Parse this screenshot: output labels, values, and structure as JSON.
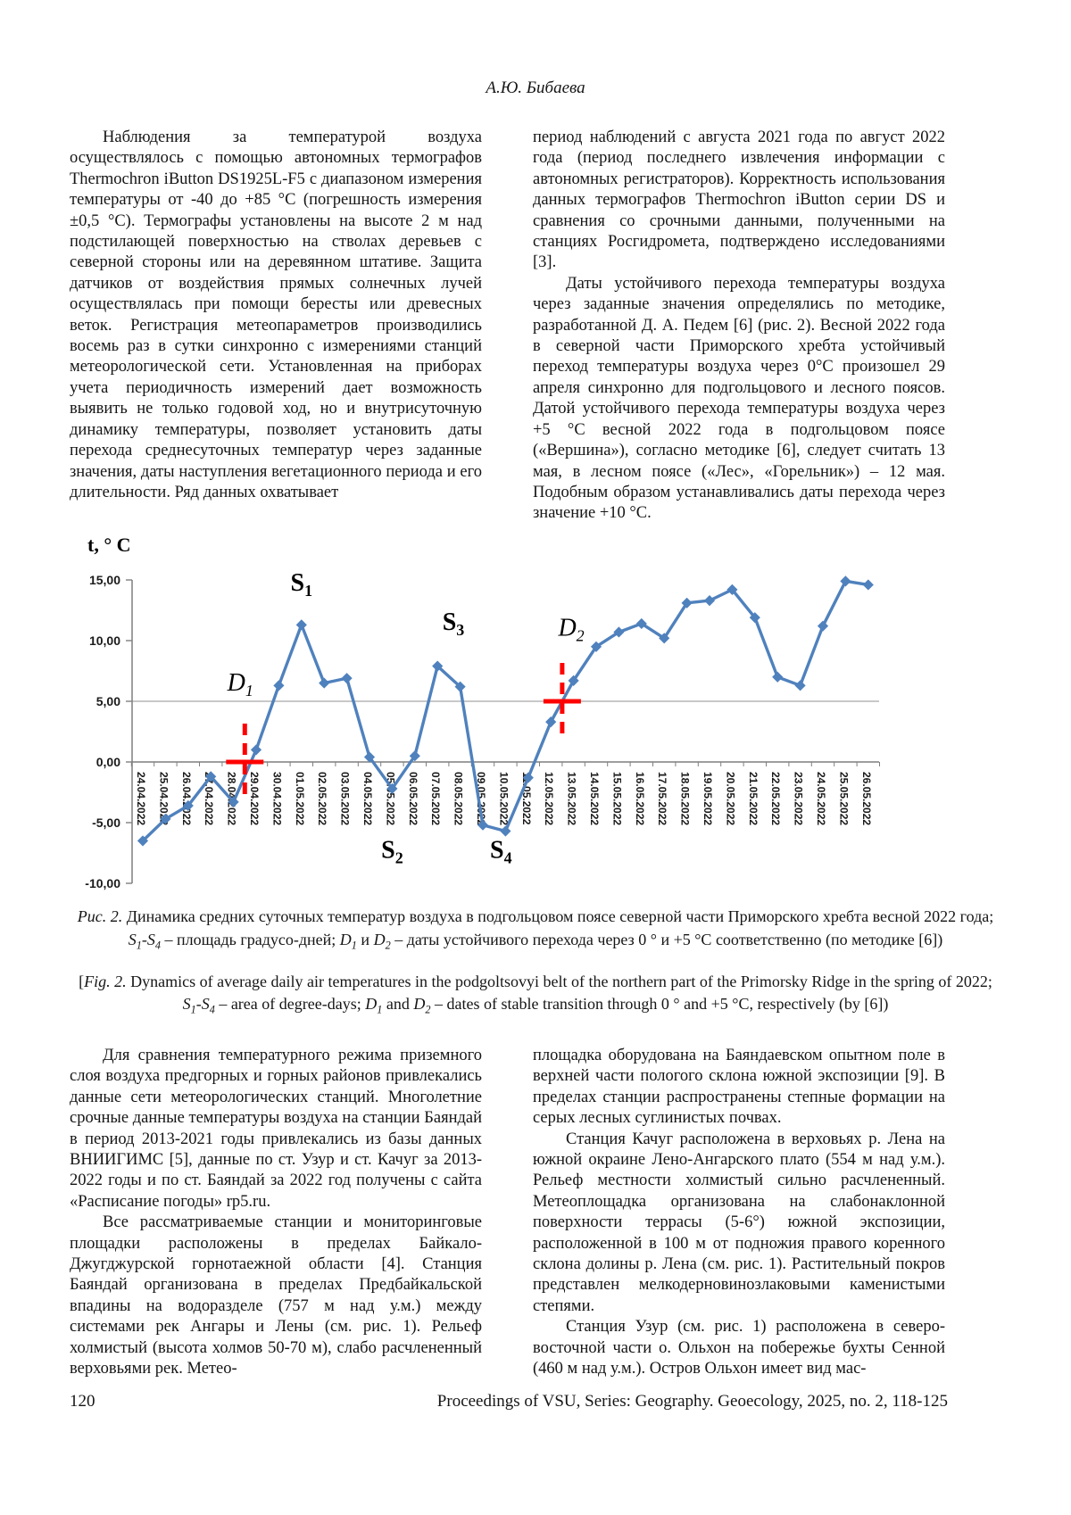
{
  "page": {
    "header_author": "А.Ю. Бибаева",
    "footer_page_number": "120",
    "footer_journal": "Proceedings of VSU, Series: Geography. Geoecology, 2025, no. 2, 118-125"
  },
  "body_top_left": [
    "Наблюдения за температурой воздуха осуществлялось с помощью автономных термографов Thermochron iButton DS1925L-F5 с диапазоном измерения температуры от -40 до +85 °C (погрешность измерения ±0,5 °C). Термографы установлены на высоте 2 м над подстилающей поверхностью на стволах деревьев с северной стороны или на деревянном штативе. Защита датчиков от воздействия прямых солнечных лучей осуществлялась при помощи бересты или древесных веток. Регистрация метеопараметров производились восемь раз в сутки синхронно с измерениями станций метеорологической сети. Установленная на приборах учета периодичность измерений дает возможность выявить не только годовой ход, но и внутрисуточную динамику температуры, позволяет установить даты перехода среднесуточных температур через заданные значения, даты наступления вегетационного периода и его длительности. Ряд данных охватывает"
  ],
  "body_top_right": [
    "период наблюдений с августа 2021 года по август 2022 года (период последнего извлечения информации с автономных регистраторов). Корректность использования данных термографов Thermochron iButton серии DS и сравнения со срочными данными, полученными на станциях Росгидромета, подтверждено исследованиями [3].",
    "Даты устойчивого перехода температуры воздуха через заданные значения определялись по методике, разработанной Д. А. Педем [6] (рис. 2). Весной 2022 года в северной части Приморского хребта устойчивый переход температуры воздуха через 0°C произошел 29 апреля синхронно для подгольцового и лесного поясов. Датой устойчивого перехода температуры воздуха через +5 °C весной 2022 года в подгольцовом поясе («Вершина»), согласно методике [6], следует считать 13 мая, в лесном поясе («Лес», «Горельник») – 12 мая. Подобным образом устанавливались даты перехода через значение +10 °C."
  ],
  "body_bottom_left": [
    "Для сравнения температурного режима приземного слоя воздуха предгорных и горных районов привлекались данные сети метеорологических станций. Многолетние срочные данные температуры воздуха на станции Баяндай в период 2013-2021 годы привлекались из базы данных ВНИИГИМС [5], данные по ст. Узур и ст. Качуг за 2013-2022 годы и по ст. Баяндай за 2022 год получены с сайта «Расписание погоды» rp5.ru.",
    "Все рассматриваемые станции и мониторинговые площадки расположены в пределах Байкало-Джугджурской горнотаежной области [4]. Станция Баяндай организована в пределах Предбайкальской впадины на водоразделе (757 м над у.м.) между системами рек Ангары и Лены (см. рис. 1). Рельеф холмистый (высота холмов 50-70 м), слабо расчлененный верховьями рек. Метео-"
  ],
  "body_bottom_right": [
    "площадка оборудована на Баяндаевском опытном поле в верхней части пологого склона южной экспозиции [9]. В пределах станции распространены степные формации на серых лесных суглинистых почвах.",
    "Станция Качуг расположена в верховьях р. Лена на южной окраине Лено-Ангарского плато (554 м над у.м.). Рельеф местности холмистый сильно расчлененный. Метеоплощадка организована на слабонаклонной поверхности террасы (5-6°) южной экспозиции, расположенной в 100 м от подножия правого коренного склона долины р. Лена (см. рис. 1). Растительный покров представлен мелкодерновинозлаковыми каменистыми степями.",
    "Станция Узур (см. рис. 1) расположена в северо-восточной части о. Ольхон на побережье бухты Сенной (460 м над у.м.). Остров Ольхон имеет вид мас-"
  ],
  "captions": {
    "ru_parts": [
      {
        "text": "Рис. 2.",
        "italic": true
      },
      {
        "text": " Динамика средних суточных температур воздуха в подгольцовом поясе северной части Приморского хребта весной 2022 года; "
      },
      {
        "text": "S",
        "italic": true
      },
      {
        "text": "1",
        "italic": true,
        "sub": true
      },
      {
        "text": "-"
      },
      {
        "text": "S",
        "italic": true
      },
      {
        "text": "4",
        "italic": true,
        "sub": true
      },
      {
        "text": " – площадь градусо-дней; "
      },
      {
        "text": "D",
        "italic": true
      },
      {
        "text": "1",
        "italic": true,
        "sub": true
      },
      {
        "text": " и "
      },
      {
        "text": "D",
        "italic": true
      },
      {
        "text": "2",
        "italic": true,
        "sub": true
      },
      {
        "text": " – даты устойчивого перехода через 0 ° и +5 °C соответственно (по методике [6])"
      }
    ],
    "en_parts": [
      {
        "text": "["
      },
      {
        "text": "Fig. 2.",
        "italic": true
      },
      {
        "text": " Dynamics of average daily air temperatures in the podgoltsovyi belt of the northern part of the Primorsky Ridge in the spring of 2022; "
      },
      {
        "text": "S",
        "italic": true
      },
      {
        "text": "1",
        "italic": true,
        "sub": true
      },
      {
        "text": "-"
      },
      {
        "text": "S",
        "italic": true
      },
      {
        "text": "4",
        "italic": true,
        "sub": true
      },
      {
        "text": " – area of degree-days; "
      },
      {
        "text": "D",
        "italic": true
      },
      {
        "text": "1",
        "italic": true,
        "sub": true
      },
      {
        "text": " and "
      },
      {
        "text": "D",
        "italic": true
      },
      {
        "text": "2",
        "italic": true,
        "sub": true
      },
      {
        "text": " – dates of stable transition through 0 ° and +5 °C, respectively (by [6])"
      }
    ]
  },
  "chart_data": {
    "type": "line",
    "title_axis": "t, ° C",
    "categories": [
      "24.04.2022",
      "25.04.2022",
      "26.04.2022",
      "27.04.2022",
      "28.04.2022",
      "29.04.2022",
      "30.04.2022",
      "01.05.2022",
      "02.05.2022",
      "03.05.2022",
      "04.05.2022",
      "05.05.2022",
      "06.05.2022",
      "07.05.2022",
      "08.05.2022",
      "09.05.2022",
      "10.05.2022",
      "11.05.2022",
      "12.05.2022",
      "13.05.2022",
      "14.05.2022",
      "15.05.2022",
      "16.05.2022",
      "17.05.2022",
      "18.05.2022",
      "19.05.2022",
      "20.05.2022",
      "21.05.2022",
      "22.05.2022",
      "23.05.2022",
      "24.05.2022",
      "25.05.2022",
      "26.05.2022"
    ],
    "values": [
      -6.5,
      -4.7,
      -3.6,
      -1.2,
      -3.3,
      1.0,
      6.3,
      11.3,
      6.5,
      6.9,
      0.4,
      -2.2,
      0.5,
      7.9,
      6.2,
      -5.2,
      -5.7,
      -1.3,
      3.3,
      6.7,
      9.5,
      10.7,
      11.4,
      10.2,
      13.1,
      13.3,
      14.2,
      11.9,
      7.0,
      6.3,
      11.2,
      14.9,
      14.6
    ],
    "ylim": [
      -10,
      15
    ],
    "yticks": [
      {
        "v": 15,
        "label": "15,00"
      },
      {
        "v": 10,
        "label": "10,00"
      },
      {
        "v": 5,
        "label": "5,00"
      },
      {
        "v": 0,
        "label": "0,00"
      },
      {
        "v": -5,
        "label": "-5,00"
      },
      {
        "v": -10,
        "label": "-10,00"
      }
    ],
    "gridlines_at": [
      5
    ],
    "series_color": "#4F81BD",
    "annotation_color": "#FF0000",
    "labels": [
      {
        "main": "S",
        "sub": "1",
        "cat": 7.0,
        "value": 14.1,
        "bold": true
      },
      {
        "main": "S",
        "sub": "2",
        "cat": 11.0,
        "value": -7.9,
        "bold": true
      },
      {
        "main": "S",
        "sub": "3",
        "cat": 13.7,
        "value": 10.9,
        "bold": true
      },
      {
        "main": "S",
        "sub": "4",
        "cat": 15.8,
        "value": -7.9,
        "bold": true
      },
      {
        "main": "D",
        "sub": "1",
        "cat": 4.3,
        "value": 5.9,
        "italic": true
      },
      {
        "main": "D",
        "sub": "2",
        "cat": 18.9,
        "value": 10.4,
        "italic": true
      }
    ],
    "crosses": [
      {
        "cat": 4.5,
        "value": 0
      },
      {
        "cat": 18.5,
        "value": 5
      }
    ]
  }
}
